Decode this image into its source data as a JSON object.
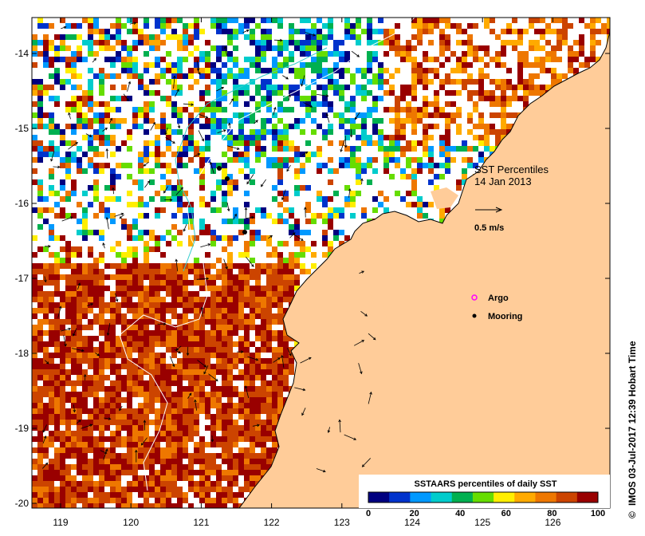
{
  "map": {
    "title_line1": "SST Percentiles",
    "title_line2": "14 Jan 2013",
    "vector_scale_label": "0.5 m/s",
    "legend_argo": "Argo",
    "legend_mooring": "Mooring",
    "credit": "IMOS 03-Jul-2017 12:39 Hobart Time",
    "colorbar_title": "SSTAARS percentiles of daily SST",
    "colorbar_ticks": [
      "0",
      "20",
      "40",
      "60",
      "80",
      "100"
    ],
    "colorbar_colors": [
      "#000080",
      "#0033cc",
      "#0099ff",
      "#00cccc",
      "#00b050",
      "#66dd00",
      "#ffee00",
      "#ffaa00",
      "#ee7700",
      "#cc4400",
      "#990000"
    ],
    "lon_ticks": [
      "119",
      "120",
      "121",
      "122",
      "123",
      "124",
      "125",
      "126"
    ],
    "lat_ticks": [
      "-14",
      "-15",
      "-16",
      "-17",
      "-18",
      "-19",
      "-20"
    ],
    "land_color": "#ffcc99"
  }
}
